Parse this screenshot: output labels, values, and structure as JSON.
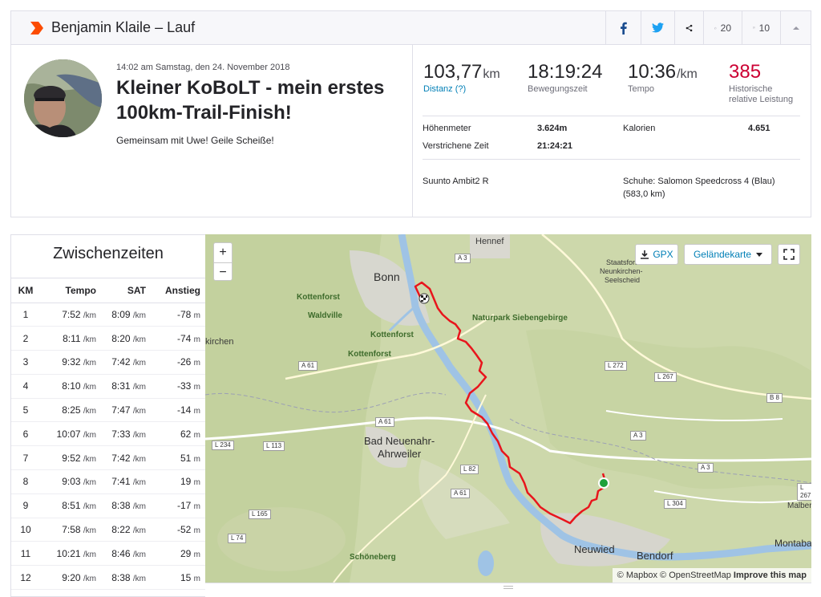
{
  "header": {
    "title": "Benjamin Klaile – Lauf",
    "kudos_count": "20",
    "comments_count": "10"
  },
  "activity": {
    "datetime": "14:02 am Samstag, den 24. November 2018",
    "title": "Kleiner KoBoLT - mein erstes 100km-Trail-Finish!",
    "description": "Gemeinsam mit Uwe! Geile Scheiße!"
  },
  "stats": {
    "distance": {
      "value": "103,77",
      "unit": "km",
      "label": "Distanz (?)"
    },
    "moving_time": {
      "value": "18:19:24",
      "label": "Bewegungszeit"
    },
    "pace": {
      "value": "10:36",
      "unit": "/km",
      "label": "Tempo"
    },
    "relative_effort": {
      "value": "385",
      "label_line1": "Historische",
      "label_line2": "relative Leistung"
    }
  },
  "more_stats": {
    "elevation_label": "Höhenmeter",
    "elevation_value": "3.624m",
    "calories_label": "Kalorien",
    "calories_value": "4.651",
    "elapsed_label": "Verstrichene Zeit",
    "elapsed_value": "21:24:21",
    "device": "Suunto Ambit2 R",
    "shoes_line1": "Schuhe: Salomon Speedcross 4 (Blau)",
    "shoes_line2": "(583,0 km)"
  },
  "splits": {
    "title": "Zwischenzeiten",
    "columns": [
      "KM",
      "Tempo",
      "SAT",
      "Anstieg"
    ],
    "pace_unit": "/km",
    "elev_unit": "m",
    "rows": [
      {
        "km": "1",
        "pace": "7:52",
        "gap": "8:09",
        "elev": "-78"
      },
      {
        "km": "2",
        "pace": "8:11",
        "gap": "8:20",
        "elev": "-74"
      },
      {
        "km": "3",
        "pace": "9:32",
        "gap": "7:42",
        "elev": "-26"
      },
      {
        "km": "4",
        "pace": "8:10",
        "gap": "8:31",
        "elev": "-33"
      },
      {
        "km": "5",
        "pace": "8:25",
        "gap": "7:47",
        "elev": "-14"
      },
      {
        "km": "6",
        "pace": "10:07",
        "gap": "7:33",
        "elev": "62"
      },
      {
        "km": "7",
        "pace": "9:52",
        "gap": "7:42",
        "elev": "51"
      },
      {
        "km": "8",
        "pace": "9:03",
        "gap": "7:41",
        "elev": "19"
      },
      {
        "km": "9",
        "pace": "8:51",
        "gap": "8:38",
        "elev": "-17"
      },
      {
        "km": "10",
        "pace": "7:58",
        "gap": "8:22",
        "elev": "-52"
      },
      {
        "km": "11",
        "pace": "10:21",
        "gap": "8:46",
        "elev": "29"
      },
      {
        "km": "12",
        "pace": "9:20",
        "gap": "8:38",
        "elev": "15"
      }
    ]
  },
  "map": {
    "zoom_in": "+",
    "zoom_out": "−",
    "gpx_label": "GPX",
    "terrain_label": "Geländekarte",
    "attribution_mapbox": "© Mapbox",
    "attribution_osm": "© OpenStreetMap",
    "attribution_improve": "Improve this map",
    "places": {
      "hennef": "Hennef",
      "bonn": "Bonn",
      "staatsforst": "Staatsforst",
      "neunkirchen": "Neunkirchen-",
      "seelscheid": "Seelscheid",
      "kottenforst1": "Kottenforst",
      "kottenforst2": "Kottenforst",
      "kottenforst3": "Kottenforst",
      "waldville": "Waldville",
      "siebengebirge": "Naturpark Siebengebirge",
      "kirchen": "kirchen",
      "badneuenahr1": "Bad Neuenahr-",
      "badneuenahr2": "Ahrweiler",
      "neuwied": "Neuwied",
      "bendorf": "Bendorf",
      "schoeneberg": "Schöneberg",
      "montaba": "Montaba",
      "malber": "Malber"
    },
    "roads": {
      "a3a": "A 3",
      "a3b": "A 3",
      "a3c": "A 3",
      "a61a": "A 61",
      "a61b": "A 61",
      "a61c": "A 61",
      "l272": "L 272",
      "l267": "L 267",
      "l267b": "L 267",
      "b8": "B 8",
      "l234": "L 234",
      "l113": "L 113",
      "l82": "L 82",
      "l165": "L 165",
      "l74": "L 74",
      "l304": "L 304"
    },
    "colors": {
      "route": "#e8151c",
      "river": "#9fc3e5",
      "start": "#1ea13b"
    }
  }
}
